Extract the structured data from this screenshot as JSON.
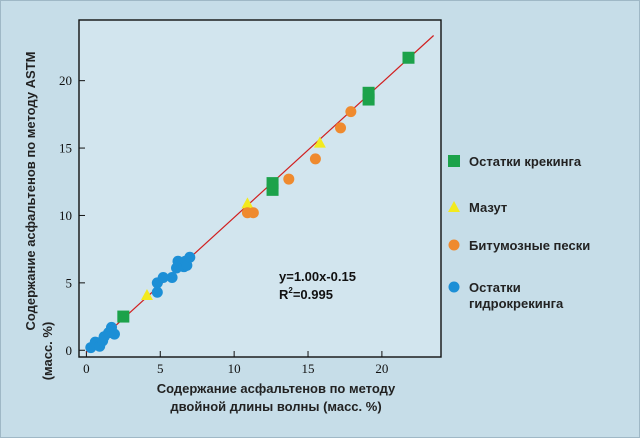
{
  "colors": {
    "background": "#c6dde8",
    "fit_line": "#d11f1f",
    "cracking": "#1ca24a",
    "mazut": "#f3ea1e",
    "bitumen": "#ef8a2e",
    "hydrocracking": "#1c8fd6"
  },
  "chart_data": {
    "type": "scatter",
    "xlabel": [
      "Содержание асфальтенов по методу",
      "двойной длины волны (масс. %)"
    ],
    "ylabel": [
      "Содержание асфальтенов по методу ASTM",
      "(масс. %)"
    ],
    "xlim": [
      -0.5,
      24
    ],
    "ylim": [
      -0.5,
      24.5
    ],
    "x_ticks": [
      0,
      5,
      10,
      15,
      20
    ],
    "y_ticks": [
      0,
      5,
      10,
      15,
      20
    ],
    "x_tick_labels": [
      "0",
      "5",
      "10",
      "15",
      "20"
    ],
    "y_tick_labels": [
      "0",
      "5",
      "10",
      "15",
      "20"
    ],
    "grid": false,
    "legend_position": "right",
    "fit": {
      "slope": 1.0,
      "intercept": -0.15,
      "x_range": [
        0,
        23.5
      ],
      "equation": "y=1.00x-0.15",
      "r2_prefix": "R",
      "r2_sup": "2",
      "r2_value": "=0.995"
    },
    "series": [
      {
        "name": "Остатки крекинга",
        "marker": "square",
        "color": "#1ca24a",
        "points": [
          [
            2.5,
            2.5
          ],
          [
            12.6,
            11.9
          ],
          [
            12.6,
            12.4
          ],
          [
            19.1,
            18.6
          ],
          [
            19.1,
            19.1
          ],
          [
            21.8,
            21.7
          ]
        ]
      },
      {
        "name": "Мазут",
        "marker": "triangle",
        "color": "#f3ea1e",
        "points": [
          [
            4.1,
            4.1
          ],
          [
            10.9,
            10.9
          ],
          [
            15.8,
            15.4
          ]
        ]
      },
      {
        "name": "Битумозные пески",
        "marker": "circle",
        "color": "#ef8a2e",
        "points": [
          [
            10.9,
            10.2
          ],
          [
            11.3,
            10.2
          ],
          [
            13.7,
            12.7
          ],
          [
            15.5,
            14.2
          ],
          [
            17.2,
            16.5
          ],
          [
            17.9,
            17.7
          ]
        ]
      },
      {
        "name_lines": [
          "Остатки",
          "гидрокрекинга"
        ],
        "marker": "circle",
        "color": "#1c8fd6",
        "points": [
          [
            0.3,
            0.2
          ],
          [
            0.6,
            0.6
          ],
          [
            0.9,
            0.3
          ],
          [
            1.1,
            0.7
          ],
          [
            1.2,
            1.0
          ],
          [
            1.5,
            1.3
          ],
          [
            1.7,
            1.7
          ],
          [
            1.9,
            1.2
          ],
          [
            4.8,
            4.3
          ],
          [
            4.8,
            5.0
          ],
          [
            5.2,
            5.4
          ],
          [
            5.8,
            5.4
          ],
          [
            6.1,
            6.1
          ],
          [
            6.2,
            6.6
          ],
          [
            6.6,
            6.2
          ],
          [
            6.7,
            6.6
          ],
          [
            6.8,
            6.3
          ],
          [
            7.0,
            6.9
          ]
        ]
      }
    ]
  }
}
